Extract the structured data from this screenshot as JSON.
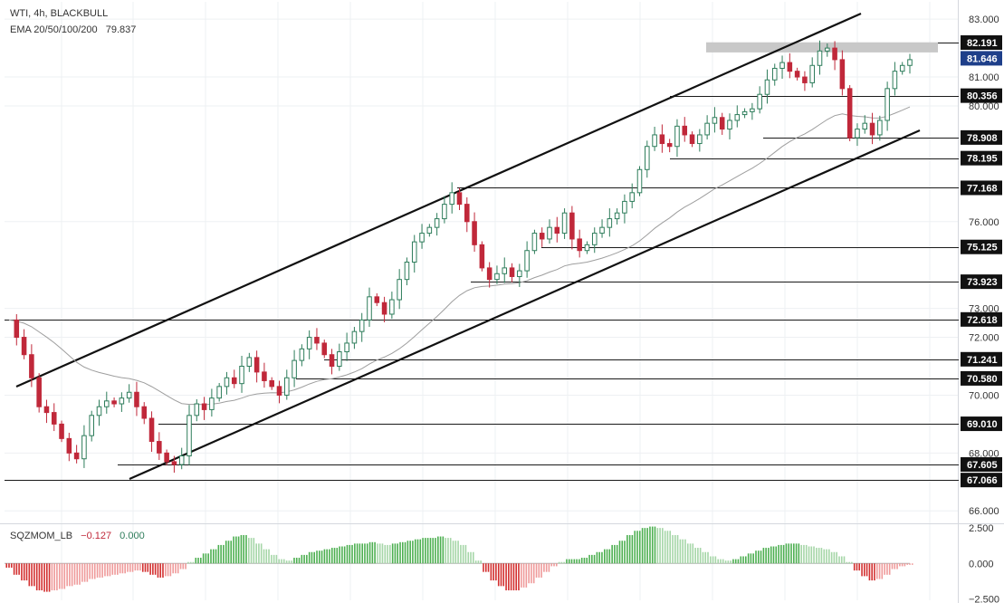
{
  "header": {
    "line1": "WTI, 4h, BLACKBULL",
    "ema_label": "EMA 20/50/100/200",
    "ema_value": "79.837"
  },
  "price_axis": {
    "ticks": [
      {
        "value": 83.0,
        "label": "83.000"
      },
      {
        "value": 81.0,
        "label": "81.000"
      },
      {
        "value": 80.0,
        "label": "80.000"
      },
      {
        "value": 76.0,
        "label": "76.000"
      },
      {
        "value": 73.0,
        "label": "73.000"
      },
      {
        "value": 72.0,
        "label": "72.000"
      },
      {
        "value": 70.0,
        "label": "70.000"
      },
      {
        "value": 68.0,
        "label": "68.000"
      },
      {
        "value": 66.0,
        "label": "66.000"
      }
    ],
    "level_labels": [
      {
        "value": 82.191,
        "label": "82.191"
      },
      {
        "value": 80.356,
        "label": "80.356"
      },
      {
        "value": 78.908,
        "label": "78.908"
      },
      {
        "value": 78.195,
        "label": "78.195"
      },
      {
        "value": 77.168,
        "label": "77.168"
      },
      {
        "value": 75.125,
        "label": "75.125"
      },
      {
        "value": 73.923,
        "label": "73.923"
      },
      {
        "value": 72.618,
        "label": "72.618"
      },
      {
        "value": 71.241,
        "label": "71.241"
      },
      {
        "value": 70.58,
        "label": "70.580"
      },
      {
        "value": 69.01,
        "label": "69.010"
      },
      {
        "value": 67.605,
        "label": "67.605"
      },
      {
        "value": 67.066,
        "label": "67.066"
      }
    ],
    "current_price": {
      "value": 81.646,
      "label": "81.646"
    }
  },
  "indicator": {
    "name": "SQZMOM_LB",
    "value1": "−0.127",
    "value2": "0.000",
    "axis_ticks": [
      {
        "value": 2.5,
        "label": "2.500"
      },
      {
        "value": 0.0,
        "label": "0.000"
      },
      {
        "value": -2.5,
        "label": "−2.500"
      }
    ]
  },
  "colors": {
    "up_candle": "#2e7d5b",
    "down_candle": "#c0283a",
    "current_price_badge": "#1e3f8a",
    "ema_line": "#9e9e9e",
    "resistance_zone": "#c8c8c8",
    "mom_pos_strong": "#4caf50",
    "mom_pos_weak": "#a5d6a7",
    "mom_neg_strong": "#d32f2f",
    "mom_neg_weak": "#ef9a9a"
  },
  "chart_data": {
    "type": "candlestick",
    "symbol": "WTI",
    "timeframe": "4h",
    "ylim": [
      65.6,
      83.6
    ],
    "horizontal_levels": [
      82.191,
      80.356,
      78.908,
      78.195,
      77.168,
      75.125,
      73.923,
      72.618,
      71.241,
      70.58,
      69.01,
      67.605,
      67.066
    ],
    "resistance_zone": [
      81.85,
      82.2
    ],
    "price_path": [
      72.6,
      72.0,
      71.4,
      70.6,
      69.6,
      69.4,
      69.0,
      68.5,
      68.0,
      67.8,
      68.6,
      69.3,
      69.6,
      69.8,
      69.7,
      69.9,
      70.1,
      69.6,
      69.2,
      68.4,
      68.0,
      67.7,
      67.6,
      67.9,
      69.3,
      69.7,
      69.5,
      69.9,
      70.3,
      70.6,
      70.4,
      71.0,
      71.3,
      70.8,
      70.5,
      70.3,
      70.0,
      70.6,
      71.2,
      71.6,
      72.0,
      71.8,
      71.4,
      71.0,
      71.5,
      71.8,
      72.2,
      72.6,
      73.4,
      73.2,
      72.8,
      73.3,
      74.0,
      74.6,
      75.3,
      75.6,
      75.8,
      76.1,
      76.6,
      77.0,
      76.6,
      76.0,
      75.2,
      74.4,
      74.0,
      74.2,
      74.4,
      74.1,
      74.3,
      75.0,
      75.6,
      75.4,
      75.8,
      75.6,
      76.3,
      75.4,
      75.0,
      75.2,
      75.6,
      75.8,
      76.1,
      76.3,
      76.7,
      77.0,
      77.8,
      78.6,
      79.0,
      78.7,
      78.6,
      79.3,
      79.0,
      78.7,
      79.0,
      79.4,
      79.6,
      79.2,
      79.5,
      79.7,
      79.8,
      79.9,
      80.4,
      80.9,
      81.3,
      81.5,
      81.2,
      81.0,
      80.8,
      81.4,
      81.9,
      82.0,
      81.6,
      80.6,
      78.9,
      79.2,
      79.4,
      79.0,
      79.5,
      80.6,
      81.2,
      81.4,
      81.6
    ],
    "momentum": [
      -0.3,
      -0.8,
      -1.2,
      -1.6,
      -1.9,
      -2.0,
      -1.9,
      -1.8,
      -1.6,
      -1.5,
      -1.3,
      -1.1,
      -1.0,
      -0.9,
      -0.8,
      -0.7,
      -0.6,
      -0.5,
      -0.6,
      -0.8,
      -1.0,
      -0.9,
      -0.7,
      -0.4,
      0.1,
      0.4,
      0.7,
      1.0,
      1.3,
      1.6,
      1.9,
      2.0,
      1.8,
      1.4,
      1.0,
      0.6,
      0.3,
      0.2,
      0.4,
      0.6,
      0.8,
      0.9,
      1.0,
      1.1,
      1.2,
      1.3,
      1.4,
      1.4,
      1.5,
      1.4,
      1.3,
      1.4,
      1.5,
      1.6,
      1.7,
      1.8,
      1.8,
      1.9,
      1.8,
      1.6,
      1.3,
      0.8,
      0.2,
      -0.6,
      -1.2,
      -1.6,
      -1.9,
      -1.9,
      -1.7,
      -1.4,
      -1.0,
      -0.6,
      -0.2,
      0.1,
      0.3,
      0.3,
      0.4,
      0.6,
      0.8,
      1.0,
      1.3,
      1.6,
      2.0,
      2.3,
      2.5,
      2.6,
      2.5,
      2.3,
      2.0,
      1.7,
      1.4,
      1.1,
      0.8,
      0.5,
      0.3,
      0.2,
      0.3,
      0.5,
      0.7,
      0.9,
      1.1,
      1.2,
      1.3,
      1.4,
      1.4,
      1.3,
      1.2,
      1.1,
      1.0,
      0.8,
      0.5,
      0.1,
      -0.5,
      -0.9,
      -1.2,
      -1.1,
      -0.8,
      -0.4,
      -0.2,
      -0.1
    ],
    "indicator_ylim": [
      -2.6,
      2.7
    ]
  }
}
